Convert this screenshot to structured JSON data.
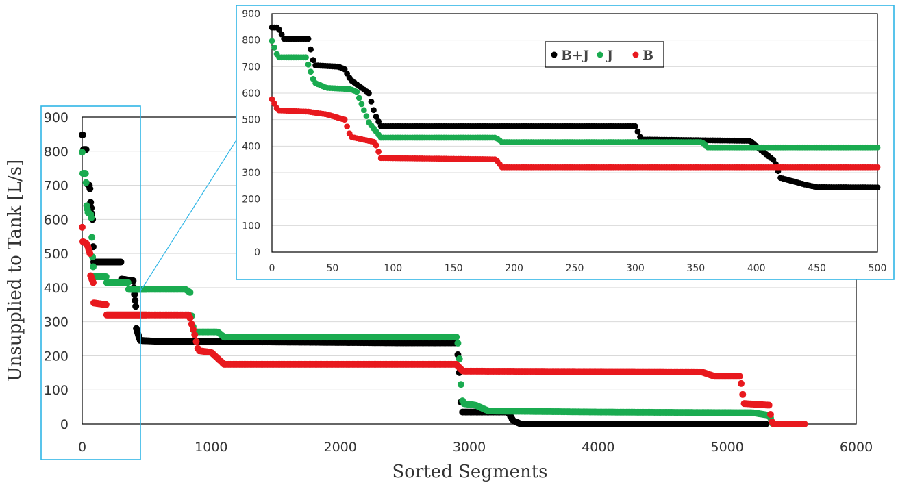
{
  "chart_data": [
    {
      "type": "scatter",
      "xlabel": "Sorted Segments",
      "ylabel": "Unsupplied to Tank [L/s]",
      "xlim": [
        0,
        6000
      ],
      "ylim": [
        0,
        900
      ],
      "xticks": [
        "0",
        "1000",
        "2000",
        "3000",
        "4000",
        "5000",
        "6000"
      ],
      "yticks": [
        "0",
        "100",
        "200",
        "300",
        "400",
        "500",
        "600",
        "700",
        "800",
        "900"
      ],
      "grid": "horizontal",
      "highlight_box_x_range": [
        0,
        450
      ],
      "series": [
        {
          "name": "B+J",
          "color": "#000000",
          "points": [
            [
              0,
              848
            ],
            [
              5,
              848
            ],
            [
              10,
              805
            ],
            [
              25,
              805
            ],
            [
              30,
              805
            ],
            [
              35,
              705
            ],
            [
              55,
              700
            ],
            [
              60,
              690
            ],
            [
              65,
              650
            ],
            [
              80,
              600
            ],
            [
              85,
              520
            ],
            [
              90,
              475
            ],
            [
              300,
              475
            ],
            [
              305,
              425
            ],
            [
              395,
              420
            ],
            [
              405,
              380
            ],
            [
              415,
              345
            ],
            [
              420,
              280
            ],
            [
              440,
              255
            ],
            [
              450,
              245
            ],
            [
              600,
              242
            ],
            [
              1000,
              242
            ],
            [
              2500,
              238
            ],
            [
              2900,
              238
            ],
            [
              2920,
              180
            ],
            [
              2940,
              35
            ],
            [
              3300,
              35
            ],
            [
              3340,
              10
            ],
            [
              3400,
              0
            ],
            [
              5300,
              0
            ]
          ]
        },
        {
          "name": "J",
          "color": "#1aab50",
          "points": [
            [
              0,
              797
            ],
            [
              5,
              735
            ],
            [
              28,
              735
            ],
            [
              35,
              640
            ],
            [
              45,
              620
            ],
            [
              65,
              615
            ],
            [
              70,
              605
            ],
            [
              80,
              490
            ],
            [
              90,
              432
            ],
            [
              185,
              432
            ],
            [
              190,
              415
            ],
            [
              355,
              415
            ],
            [
              360,
              395
            ],
            [
              500,
              395
            ],
            [
              800,
              395
            ],
            [
              840,
              385
            ],
            [
              850,
              300
            ],
            [
              870,
              270
            ],
            [
              1050,
              270
            ],
            [
              1100,
              255
            ],
            [
              2900,
              255
            ],
            [
              2920,
              225
            ],
            [
              2930,
              140
            ],
            [
              2950,
              60
            ],
            [
              3050,
              55
            ],
            [
              3150,
              38
            ],
            [
              4000,
              35
            ],
            [
              5200,
              33
            ],
            [
              5330,
              25
            ],
            [
              5350,
              0
            ]
          ]
        },
        {
          "name": "B",
          "color": "#e8191e",
          "points": [
            [
              0,
              577
            ],
            [
              5,
              535
            ],
            [
              30,
              530
            ],
            [
              45,
              520
            ],
            [
              60,
              500
            ],
            [
              65,
              435
            ],
            [
              75,
              425
            ],
            [
              85,
              415
            ],
            [
              90,
              355
            ],
            [
              185,
              350
            ],
            [
              190,
              320
            ],
            [
              500,
              320
            ],
            [
              830,
              320
            ],
            [
              850,
              290
            ],
            [
              870,
              265
            ],
            [
              900,
              215
            ],
            [
              1000,
              210
            ],
            [
              1100,
              175
            ],
            [
              2900,
              175
            ],
            [
              2950,
              155
            ],
            [
              4800,
              153
            ],
            [
              4900,
              140
            ],
            [
              5100,
              140
            ],
            [
              5130,
              60
            ],
            [
              5330,
              55
            ],
            [
              5340,
              10
            ],
            [
              5360,
              0
            ],
            [
              5600,
              0
            ]
          ]
        }
      ]
    },
    {
      "type": "scatter",
      "xlim": [
        0,
        500
      ],
      "ylim": [
        0,
        900
      ],
      "xticks": [
        "0",
        "50",
        "100",
        "150",
        "200",
        "250",
        "300",
        "350",
        "400",
        "450",
        "500"
      ],
      "yticks": [
        "0",
        "100",
        "200",
        "300",
        "400",
        "500",
        "600",
        "700",
        "800",
        "900"
      ],
      "grid": "horizontal",
      "legend_position": "top-right",
      "legend": [
        "B+J",
        "J",
        "B"
      ]
    }
  ]
}
